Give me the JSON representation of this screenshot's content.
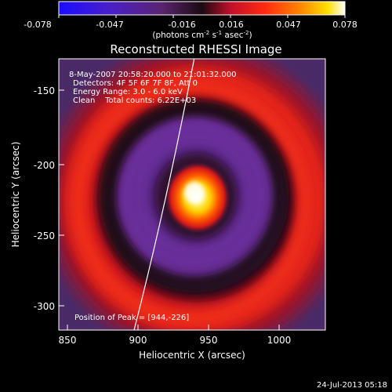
{
  "colorbar": {
    "tick_labels": [
      "-0.078",
      "-0.047",
      "-0.016",
      "0.016",
      "0.047",
      "0.078"
    ],
    "unit_label": "(photons cm",
    "unit_sup1": "-2",
    "unit_mid": " s",
    "unit_sup2": "-1",
    "unit_mid2": " asec",
    "unit_sup3": "-2",
    "unit_end": ")"
  },
  "plot": {
    "title": "Reconstructed RHESSI Image",
    "xlabel": "Heliocentric X (arcsec)",
    "ylabel": "Heliocentric Y (arcsec)",
    "x_ticks": [
      "850",
      "900",
      "950",
      "1000"
    ],
    "y_ticks": [
      "-150",
      "-200",
      "-250",
      "-300"
    ],
    "annotations": {
      "time": "8-May-2007 20:58:20.000 to 21:01:32.000",
      "detectors": "Detectors: 4F 5F 6F 7F 8F, Att 0",
      "energy": "Energy Range: 3.0 - 6.0 keV",
      "clean": "Clean    Total counts: 6.22E+03",
      "peak": "Position of Peak = [944,-226]"
    },
    "footer_date": "24-Jul-2013 05:18"
  },
  "chart_data": {
    "type": "heatmap",
    "title": "Reconstructed RHESSI Image",
    "xlabel": "Heliocentric X (arcsec)",
    "ylabel": "Heliocentric Y (arcsec)",
    "xlim": [
      850,
      1035
    ],
    "ylim": [
      -320,
      -130
    ],
    "color_range": [
      -0.078,
      0.078
    ],
    "peak": {
      "x": 944,
      "y": -226
    },
    "colors": {
      "neg_deep": "#0000ff",
      "neg": "#6a2b8f",
      "zero": "#2a1530",
      "pos_low": "#c8102e",
      "pos_mid": "#ff4a00",
      "pos_high": "#ffd700",
      "pos_max": "#ffffff",
      "frame": "#ffffff"
    }
  }
}
